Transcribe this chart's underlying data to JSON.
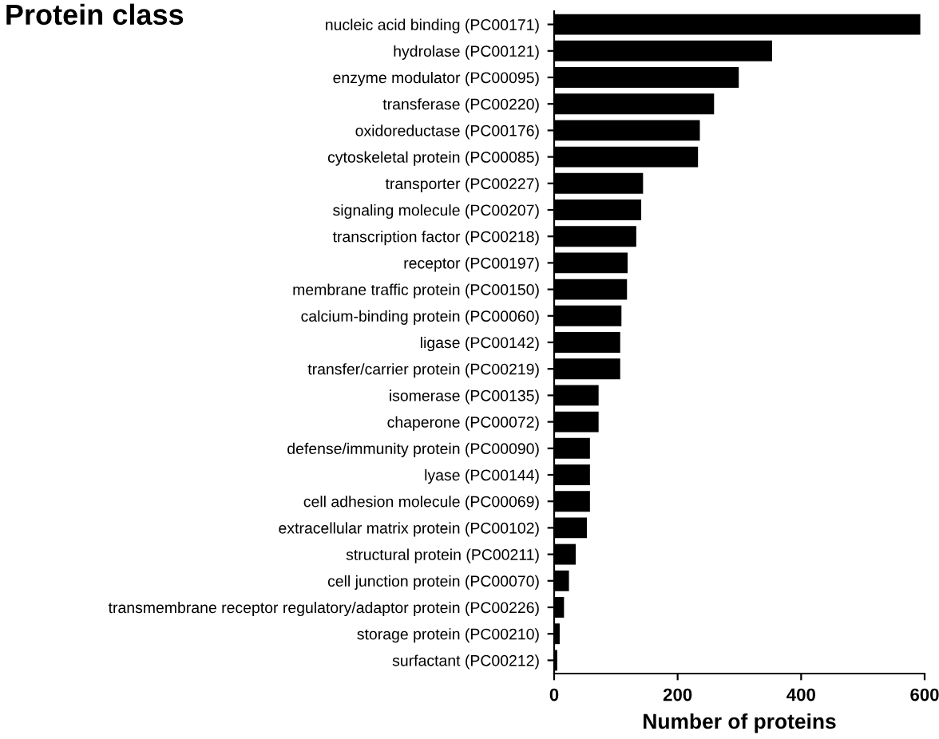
{
  "chart_data": {
    "type": "bar",
    "orientation": "horizontal",
    "title": "Protein class",
    "xlabel": "Number of proteins",
    "categories": [
      "nucleic acid binding (PC00171)",
      "hydrolase (PC00121)",
      "enzyme modulator (PC00095)",
      "transferase (PC00220)",
      "oxidoreductase (PC00176)",
      "cytoskeletal protein (PC00085)",
      "transporter (PC00227)",
      "signaling molecule (PC00207)",
      "transcription factor (PC00218)",
      "receptor (PC00197)",
      "membrane traffic protein (PC00150)",
      "calcium-binding protein (PC00060)",
      "ligase (PC00142)",
      "transfer/carrier protein (PC00219)",
      "isomerase (PC00135)",
      "chaperone (PC00072)",
      "defense/immunity protein (PC00090)",
      "lyase (PC00144)",
      "cell adhesion molecule (PC00069)",
      "extracellular matrix protein (PC00102)",
      "structural protein (PC00211)",
      "cell junction protein (PC00070)",
      "transmembrane receptor regulatory/adaptor protein (PC00226)",
      "storage protein (PC00210)",
      "surfactant (PC00212)"
    ],
    "values": [
      593,
      353,
      299,
      259,
      236,
      233,
      144,
      141,
      133,
      119,
      118,
      109,
      107,
      107,
      72,
      72,
      58,
      58,
      58,
      53,
      35,
      24,
      16,
      9,
      5
    ],
    "color": "#000000",
    "xlim": [
      0,
      600
    ],
    "xticks": [
      0,
      200,
      400,
      600
    ],
    "grid": false,
    "legend": false
  }
}
